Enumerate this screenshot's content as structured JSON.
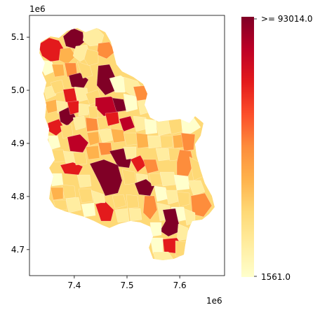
{
  "chart_data": {
    "type": "choropleth",
    "x_axis": {
      "ticks": [
        "7.4",
        "7.5",
        "7.6"
      ],
      "tick_values": [
        7.4,
        7.5,
        7.6
      ],
      "offset_label": "1e6",
      "range": [
        7.315,
        7.685
      ]
    },
    "y_axis": {
      "ticks": [
        "4.7",
        "4.8",
        "4.9",
        "5.0",
        "5.1"
      ],
      "tick_values": [
        4.7,
        4.8,
        4.9,
        5.0,
        5.1
      ],
      "offset_label": "1e6",
      "range": [
        4.651,
        5.141
      ]
    },
    "colorbar": {
      "colormap": "YlOrRd",
      "min": 1561.0,
      "max": 93014.0,
      "min_label": "1561.0",
      "max_label": ">= 93014.0",
      "colors": [
        "#ffffcc",
        "#ffeda0",
        "#fed976",
        "#feb24c",
        "#fd8d3c",
        "#fc4e2a",
        "#e31a1c",
        "#bd0026",
        "#800026"
      ]
    }
  }
}
